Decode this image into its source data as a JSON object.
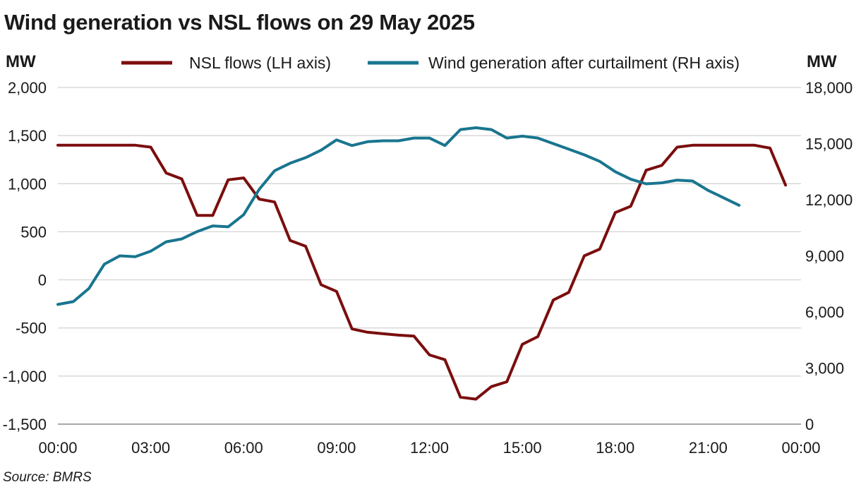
{
  "title": "Wind generation vs NSL flows on 29 May 2025",
  "source": "Source: BMRS",
  "chart_data": {
    "type": "line",
    "title": "Wind generation vs NSL flows on 29 May 2025",
    "left_axis": {
      "label": "MW",
      "ylim": [
        -1500,
        2000
      ],
      "ticks": [
        -1500,
        -1000,
        -500,
        0,
        500,
        1000,
        1500,
        2000
      ],
      "tick_labels": [
        "-1,500",
        "-1,000",
        "-500",
        "0",
        "500",
        "1,000",
        "1,500",
        "2,000"
      ]
    },
    "right_axis": {
      "label": "MW",
      "ylim": [
        0,
        18000
      ],
      "ticks": [
        0,
        3000,
        6000,
        9000,
        12000,
        15000,
        18000
      ],
      "tick_labels": [
        "0",
        "3,000",
        "6,000",
        "9,000",
        "12,000",
        "15,000",
        "18,000"
      ]
    },
    "x_axis": {
      "ticks": [
        "00:00",
        "03:00",
        "06:00",
        "09:00",
        "12:00",
        "15:00",
        "18:00",
        "21:00",
        "00:00"
      ]
    },
    "grid": "horizontal",
    "legend_position": "top",
    "series": [
      {
        "name": "NSL flows (LH axis)",
        "axis": "left",
        "color": "#7b0e0e",
        "x": [
          "00:00",
          "00:30",
          "01:00",
          "01:30",
          "02:00",
          "02:30",
          "03:00",
          "03:30",
          "04:00",
          "04:30",
          "05:00",
          "05:30",
          "06:00",
          "06:30",
          "07:00",
          "07:30",
          "08:00",
          "08:30",
          "09:00",
          "09:30",
          "10:00",
          "10:30",
          "11:00",
          "11:30",
          "12:00",
          "12:30",
          "13:00",
          "13:30",
          "14:00",
          "14:30",
          "15:00",
          "15:30",
          "16:00",
          "16:30",
          "17:00",
          "17:30",
          "18:00",
          "18:30",
          "19:00",
          "19:30",
          "20:00",
          "20:30",
          "21:00",
          "21:30",
          "22:00",
          "22:30",
          "23:00",
          "23:30"
        ],
        "values": [
          1400,
          1400,
          1400,
          1400,
          1400,
          1400,
          1380,
          1110,
          1050,
          670,
          670,
          1040,
          1060,
          840,
          810,
          410,
          350,
          -50,
          -120,
          -510,
          -545,
          -560,
          -575,
          -585,
          -780,
          -830,
          -1220,
          -1240,
          -1110,
          -1060,
          -670,
          -590,
          -210,
          -130,
          250,
          320,
          700,
          765,
          1140,
          1190,
          1380,
          1400,
          1400,
          1400,
          1400,
          1400,
          1370,
          985
        ]
      },
      {
        "name": "Wind generation after curtailment (RH axis)",
        "axis": "right",
        "color": "#19758f",
        "x": [
          "00:00",
          "00:30",
          "01:00",
          "01:30",
          "02:00",
          "02:30",
          "03:00",
          "03:30",
          "04:00",
          "04:30",
          "05:00",
          "05:30",
          "06:00",
          "06:30",
          "07:00",
          "07:30",
          "08:00",
          "08:30",
          "09:00",
          "09:30",
          "10:00",
          "10:30",
          "11:00",
          "11:30",
          "12:00",
          "12:30",
          "13:00",
          "13:30",
          "14:00",
          "14:30",
          "15:00",
          "15:30",
          "16:00",
          "16:30",
          "17:00",
          "17:30",
          "18:00",
          "18:30",
          "19:00",
          "19:30",
          "20:00",
          "20:30",
          "21:00",
          "21:30",
          "22:00",
          "22:30",
          "23:00",
          "23:30"
        ],
        "values": [
          6400,
          6550,
          7250,
          8550,
          9000,
          8950,
          9250,
          9750,
          9900,
          10300,
          10600,
          10550,
          11200,
          12550,
          13550,
          13950,
          14250,
          14650,
          15200,
          14900,
          15100,
          15150,
          15150,
          15300,
          15300,
          14900,
          15750,
          15850,
          15750,
          15300,
          15400,
          15300,
          15000,
          14700,
          14400,
          14050,
          13500,
          13100,
          12850,
          12900,
          13050,
          13000,
          12500,
          12100,
          11700,
          null,
          null,
          null
        ]
      }
    ]
  }
}
